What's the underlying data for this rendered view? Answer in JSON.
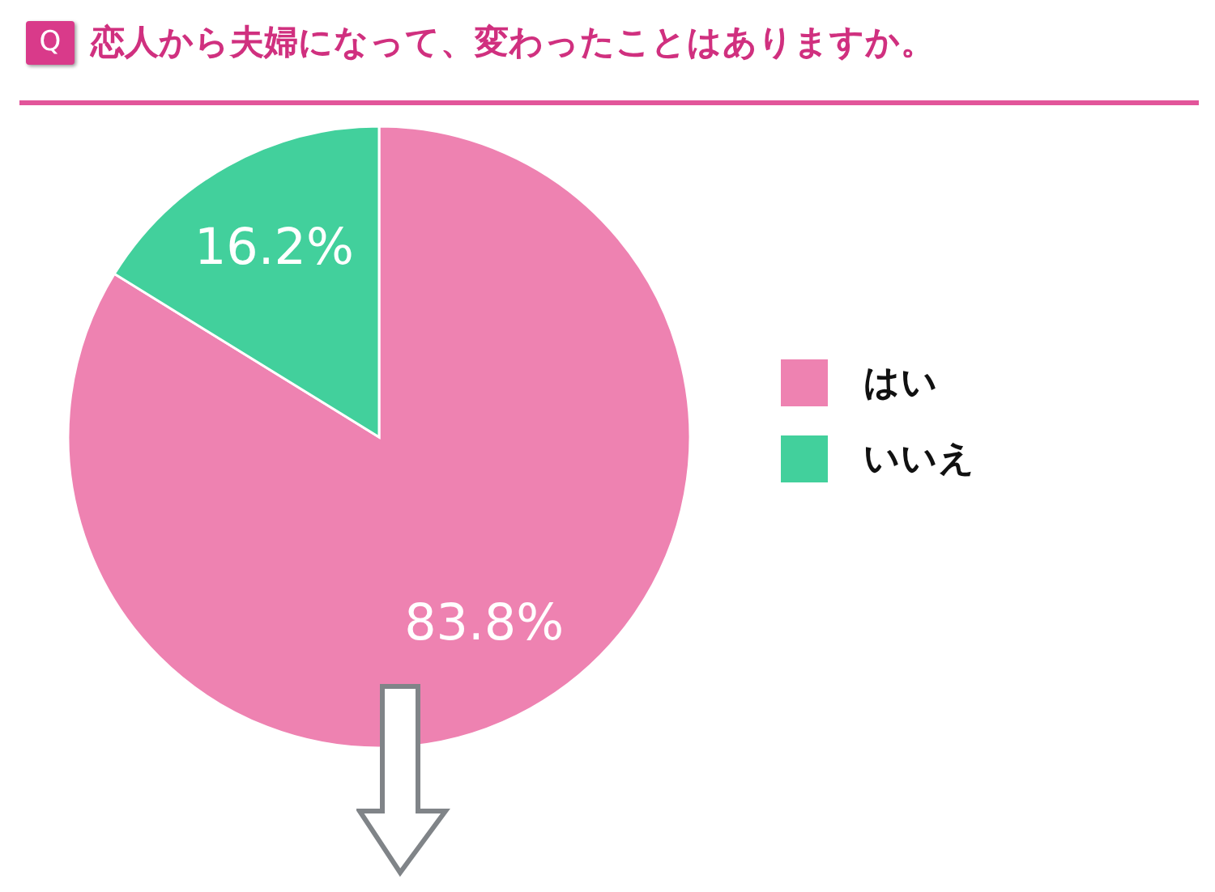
{
  "chart_data": {
    "type": "pie",
    "title": "恋人から夫婦になって、変わったことはありますか。",
    "annotations": [
      "Q"
    ],
    "categories": [
      "はい",
      "いいえ"
    ],
    "values": [
      83.8,
      16.2
    ],
    "value_labels": [
      "83.8%",
      "16.2%"
    ],
    "colors": [
      "#ee82b1",
      "#42d09c"
    ],
    "legend": "right"
  }
}
